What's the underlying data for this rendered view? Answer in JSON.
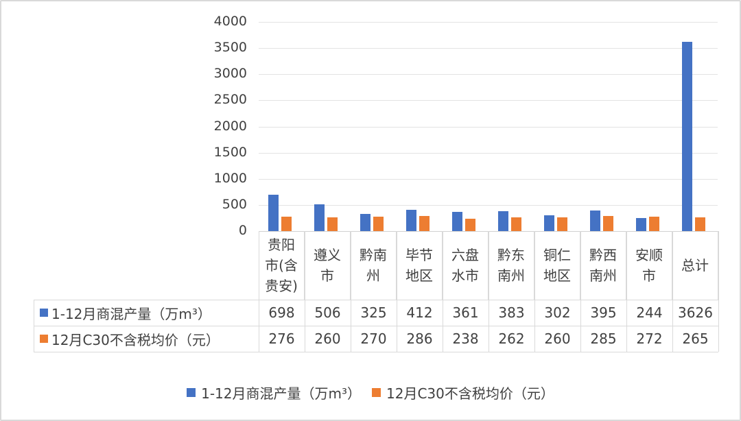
{
  "chart_data": {
    "type": "bar",
    "title": "",
    "xlabel": "",
    "ylabel": "",
    "ylim": [
      0,
      4000
    ],
    "yticks": [
      0,
      500,
      1000,
      1500,
      2000,
      2500,
      3000,
      3500,
      4000
    ],
    "grid": true,
    "legend_position": "bottom",
    "data_table": true,
    "categories": [
      "贵阳市(含贵安)",
      "遵义市",
      "黔南州",
      "毕节地区",
      "六盘水市",
      "黔东南州",
      "铜仁地区",
      "黔西南州",
      "安顺市",
      "总计"
    ],
    "category_lines": [
      [
        "贵阳",
        "市(含",
        "贵安)"
      ],
      [
        "遵义",
        "市"
      ],
      [
        "黔南",
        "州"
      ],
      [
        "毕节",
        "地区"
      ],
      [
        "六盘",
        "水市"
      ],
      [
        "黔东",
        "南州"
      ],
      [
        "铜仁",
        "地区"
      ],
      [
        "黔西",
        "南州"
      ],
      [
        "安顺",
        "市"
      ],
      [
        "总计"
      ]
    ],
    "series": [
      {
        "name": "1-12月商混产量（万m³）",
        "color": "#4472C4",
        "values": [
          698,
          506,
          325,
          412,
          361,
          383,
          302,
          395,
          244,
          3626
        ]
      },
      {
        "name": "12月C30不含税均价（元）",
        "color": "#ED7D31",
        "values": [
          276,
          260,
          270,
          286,
          238,
          262,
          260,
          285,
          272,
          265
        ]
      }
    ]
  },
  "ytick_labels": [
    "4000",
    "3500",
    "3000",
    "2500",
    "2000",
    "1500",
    "1000",
    "500",
    "0"
  ],
  "table": {
    "rows": [
      {
        "label": "1-12月商混产量（万m³）",
        "values": [
          "698",
          "506",
          "325",
          "412",
          "361",
          "383",
          "302",
          "395",
          "244",
          "3626"
        ]
      },
      {
        "label": "12月C30不含税均价（元）",
        "values": [
          "276",
          "260",
          "270",
          "286",
          "238",
          "262",
          "260",
          "285",
          "272",
          "265"
        ]
      }
    ]
  },
  "legend": [
    {
      "label": "1-12月商混产量（万m³）",
      "color": "#4472C4"
    },
    {
      "label": "12月C30不含税均价（元）",
      "color": "#ED7D31"
    }
  ]
}
